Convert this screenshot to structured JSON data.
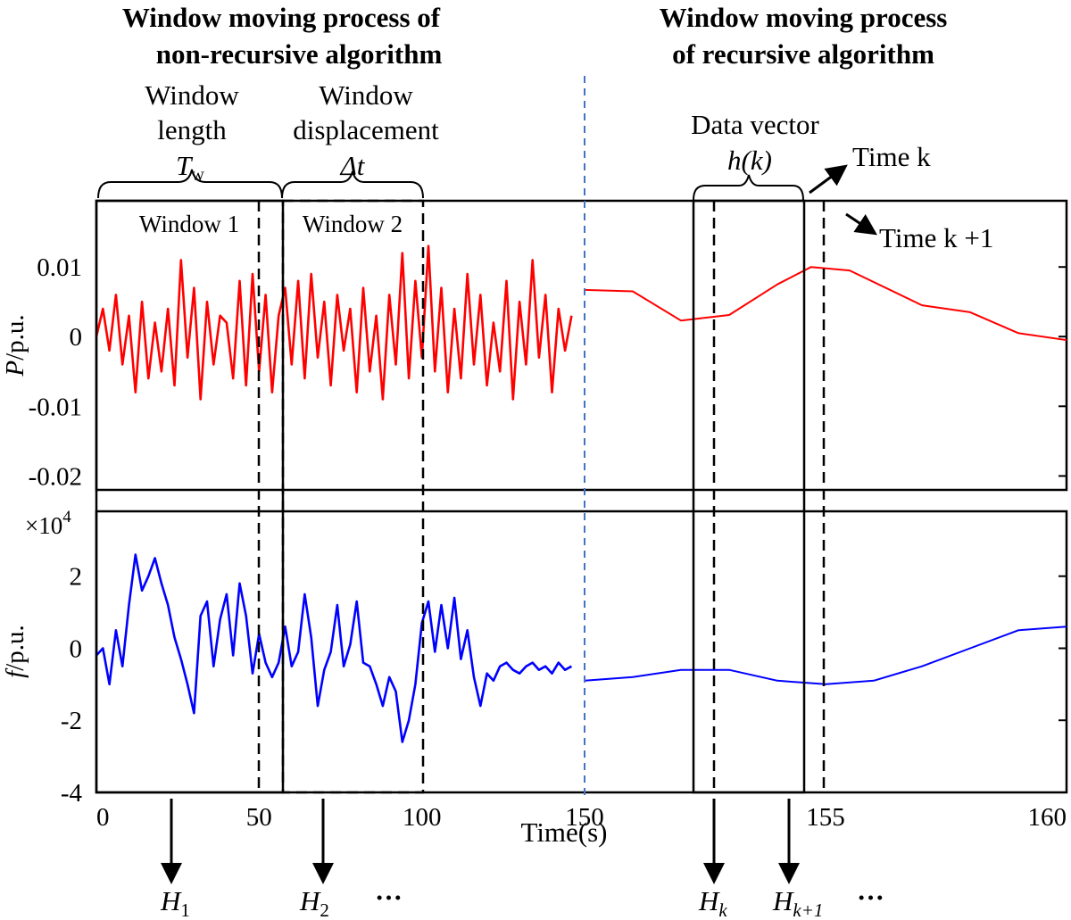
{
  "headers": {
    "left": [
      "Window moving process of",
      "non-recursive algorithm"
    ],
    "right": [
      "Window moving process",
      "of recursive algorithm"
    ]
  },
  "annotations": {
    "window_length": [
      "Window",
      "length"
    ],
    "window_length_sym": "T",
    "window_length_sub": "w",
    "window_displacement": [
      "Window",
      "displacement"
    ],
    "window_displacement_sym": "Δt",
    "window1": "Window 1",
    "window2": "Window 2",
    "data_vector": "Data vector",
    "data_vector_sym": "h(k)",
    "time_k": "Time k",
    "time_k1": "Time k +1"
  },
  "outputs": [
    {
      "base": "H",
      "sub": "1"
    },
    {
      "base": "H",
      "sub": "2"
    },
    {
      "base": "H",
      "sub": "k"
    },
    {
      "base": "H",
      "sub": "k+1"
    }
  ],
  "ellipsis": "···",
  "colors": {
    "power": "#ff0000",
    "freq": "#0000ff",
    "divider": "#4472c4",
    "frame": "#000000"
  },
  "chart_data": [
    {
      "type": "line",
      "ylabel": "P/p.u.",
      "ylim": [
        -0.022,
        0.0195
      ],
      "yticks": [
        "0.01",
        "0",
        "-0.01",
        "-0.02"
      ],
      "yticks_values": [
        0.01,
        0,
        -0.01,
        -0.02
      ],
      "series": [
        {
          "segment": "noisy",
          "x": [
            0,
            2,
            4,
            6,
            8,
            10,
            12,
            14,
            16,
            18,
            20,
            22,
            24,
            26,
            28,
            30,
            32,
            34,
            36,
            38,
            40,
            42,
            44,
            46,
            48,
            50,
            52,
            54,
            56,
            58,
            60,
            62,
            64,
            66,
            68,
            70,
            72,
            74,
            76,
            78,
            80,
            82,
            84,
            86,
            88,
            90,
            92,
            94,
            96,
            98,
            100,
            102,
            104,
            106,
            108,
            110,
            112,
            114,
            116,
            118,
            120,
            122,
            124,
            126,
            128,
            130,
            132,
            134,
            136,
            138,
            140,
            142,
            144,
            146
          ],
          "y": [
            0,
            0.004,
            -0.002,
            0.006,
            -0.004,
            0.003,
            -0.008,
            0.005,
            -0.006,
            0.002,
            -0.005,
            0.004,
            -0.007,
            0.011,
            -0.003,
            0.007,
            -0.009,
            0.005,
            -0.004,
            0.003,
            0.002,
            -0.006,
            0.008,
            -0.007,
            0.009,
            -0.005,
            0.006,
            -0.008,
            0.003,
            0.007,
            -0.004,
            0.008,
            -0.006,
            0.009,
            -0.003,
            0.005,
            -0.007,
            0.006,
            -0.002,
            0.004,
            -0.008,
            0.007,
            -0.005,
            0.003,
            -0.009,
            0.006,
            -0.004,
            0.012,
            -0.006,
            0.008,
            -0.003,
            0.013,
            -0.005,
            0.007,
            -0.008,
            0.004,
            -0.006,
            0.009,
            -0.004,
            0.006,
            -0.007,
            0.002,
            -0.005,
            0.008,
            -0.009,
            0.005,
            -0.004,
            0.011,
            -0.003,
            0.006,
            -0.008,
            0.004,
            -0.002,
            0.003
          ]
        },
        {
          "segment": "smooth",
          "x": [
            150,
            151,
            152,
            153,
            154,
            154.7,
            155.5,
            157,
            158,
            159,
            160
          ],
          "y": [
            0.0067,
            0.0065,
            0.0023,
            0.0031,
            0.0075,
            0.01,
            0.0095,
            0.0045,
            0.0035,
            0.0005,
            -0.0005
          ]
        }
      ]
    },
    {
      "type": "line",
      "ylabel": "f/p.u.",
      "multiplier": "×10^4",
      "ylim": [
        -4,
        3.8
      ],
      "yticks": [
        "2",
        "0",
        "-2",
        "-4"
      ],
      "yticks_values": [
        2,
        0,
        -2,
        -4
      ],
      "xlabel": "Time(s)",
      "xticks": [
        "0",
        "50",
        "100",
        "150",
        "155",
        "160"
      ],
      "series": [
        {
          "segment": "noisy",
          "x": [
            0,
            2,
            4,
            6,
            8,
            10,
            12,
            14,
            16,
            18,
            20,
            22,
            24,
            26,
            28,
            30,
            32,
            34,
            36,
            38,
            40,
            42,
            44,
            46,
            48,
            50,
            52,
            54,
            56,
            58,
            60,
            62,
            64,
            66,
            68,
            70,
            72,
            74,
            76,
            78,
            80,
            82,
            84,
            86,
            88,
            90,
            92,
            94,
            96,
            98,
            100,
            102,
            104,
            106,
            108,
            110,
            112,
            114,
            116,
            118,
            120,
            122,
            124,
            126,
            128,
            130,
            132,
            134,
            136,
            138,
            140,
            142,
            144,
            146
          ],
          "y": [
            -0.2,
            0.0,
            -1.0,
            0.5,
            -0.5,
            1.2,
            2.6,
            1.6,
            2.0,
            2.5,
            1.8,
            1.2,
            0.3,
            -0.3,
            -1.0,
            -1.8,
            0.9,
            1.3,
            -0.5,
            0.8,
            1.5,
            -0.2,
            1.8,
            0.9,
            -0.7,
            0.4,
            -0.4,
            -0.8,
            -0.4,
            0.6,
            -0.5,
            -0.1,
            1.5,
            0.3,
            -1.6,
            -0.6,
            -0.1,
            1.2,
            -0.5,
            0.1,
            1.3,
            -0.4,
            -0.5,
            -1.0,
            -1.6,
            -0.8,
            -1.2,
            -2.6,
            -2.0,
            -1.0,
            0.7,
            1.3,
            -0.1,
            1.2,
            0.0,
            1.4,
            -0.3,
            0.5,
            -0.8,
            -1.6,
            -0.7,
            -0.9,
            -0.5,
            -0.4,
            -0.6,
            -0.7,
            -0.5,
            -0.4,
            -0.6,
            -0.5,
            -0.7,
            -0.4,
            -0.6,
            -0.5
          ]
        },
        {
          "segment": "smooth",
          "x": [
            150,
            151,
            152,
            153,
            154,
            155,
            156,
            157,
            158,
            159,
            160
          ],
          "y": [
            -0.9,
            -0.8,
            -0.6,
            -0.6,
            -0.9,
            -1.0,
            -0.9,
            -0.5,
            0.0,
            0.5,
            0.6
          ]
        }
      ]
    }
  ]
}
